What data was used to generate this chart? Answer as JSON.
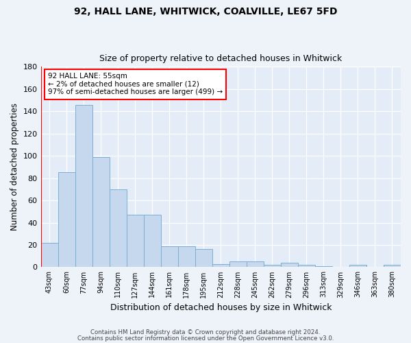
{
  "title1": "92, HALL LANE, WHITWICK, COALVILLE, LE67 5FD",
  "title2": "Size of property relative to detached houses in Whitwick",
  "xlabel": "Distribution of detached houses by size in Whitwick",
  "ylabel": "Number of detached properties",
  "categories": [
    "43sqm",
    "60sqm",
    "77sqm",
    "94sqm",
    "110sqm",
    "127sqm",
    "144sqm",
    "161sqm",
    "178sqm",
    "195sqm",
    "212sqm",
    "228sqm",
    "245sqm",
    "262sqm",
    "279sqm",
    "296sqm",
    "313sqm",
    "329sqm",
    "346sqm",
    "363sqm",
    "380sqm"
  ],
  "values": [
    22,
    85,
    146,
    99,
    70,
    47,
    47,
    19,
    19,
    16,
    3,
    5,
    5,
    2,
    4,
    2,
    1,
    0,
    2,
    0,
    2
  ],
  "bar_color": "#c5d8ee",
  "bar_edge_color": "#7aafd4",
  "annotation_text": "92 HALL LANE: 55sqm\n← 2% of detached houses are smaller (12)\n97% of semi-detached houses are larger (499) →",
  "annotation_box_color": "white",
  "annotation_box_edge_color": "red",
  "vline_x": -0.5,
  "ylim": [
    0,
    180
  ],
  "yticks": [
    0,
    20,
    40,
    60,
    80,
    100,
    120,
    140,
    160,
    180
  ],
  "footer1": "Contains HM Land Registry data © Crown copyright and database right 2024.",
  "footer2": "Contains public sector information licensed under the Open Government Licence v3.0.",
  "bg_color": "#eef2f9",
  "plot_bg_color": "#e4ecf7"
}
